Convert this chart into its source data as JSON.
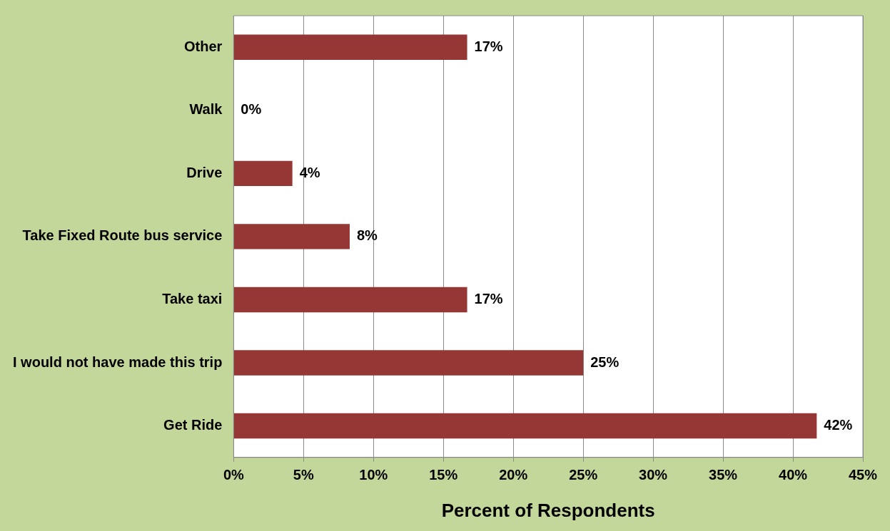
{
  "chart_data": {
    "type": "bar",
    "orientation": "horizontal",
    "xlabel": "Percent of Respondents",
    "categories": [
      "Other",
      "Walk",
      "Drive",
      "Take Fixed Route bus service",
      "Take taxi",
      "I would not have made this trip",
      "Get Ride"
    ],
    "values": [
      16.7,
      0,
      4.2,
      8.3,
      16.7,
      25,
      41.7
    ],
    "value_labels": [
      "17%",
      "0%",
      "4%",
      "8%",
      "17%",
      "25%",
      "42%"
    ],
    "color": "#953735",
    "xlim": [
      0,
      45
    ],
    "xticks": [
      {
        "value": 0,
        "label": "0%"
      },
      {
        "value": 5,
        "label": "5%"
      },
      {
        "value": 10,
        "label": "10%"
      },
      {
        "value": 15,
        "label": "15%"
      },
      {
        "value": 20,
        "label": "20%"
      },
      {
        "value": 25,
        "label": "25%"
      },
      {
        "value": 30,
        "label": "30%"
      },
      {
        "value": 35,
        "label": "35%"
      },
      {
        "value": 40,
        "label": "40%"
      },
      {
        "value": 45,
        "label": "45%"
      }
    ],
    "grid": "x",
    "legend": false
  }
}
